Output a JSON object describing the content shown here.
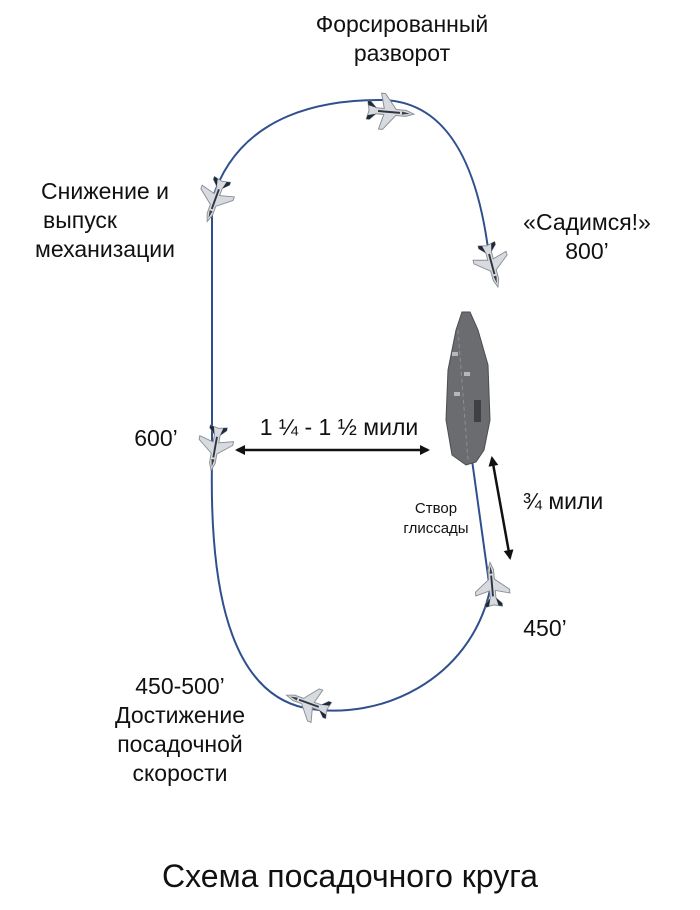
{
  "labels": {
    "forced_turn": [
      "Форсированный",
      "разворот"
    ],
    "lets_land": [
      "«Садимся!»",
      "800’"
    ],
    "descent": [
      "Снижение и",
      "выпуск",
      "механизации"
    ],
    "alt_600": "600’",
    "distance_abeam": "1 ¼ - 1 ½  мили",
    "glide_slope": [
      "Створ",
      "глиссады"
    ],
    "distance_final": "¾  мили",
    "alt_450": "450’",
    "approach_speed": [
      "450-500’",
      "Достижение",
      "посадочной",
      "скорости"
    ]
  },
  "title": "Схема посадочного круга",
  "colors": {
    "path": "#2f4f8f",
    "arrow": "#111111",
    "deck": "#6a6c70"
  },
  "icons": [
    "jet-icon",
    "aircraft-carrier-icon",
    "double-arrow-icon"
  ]
}
